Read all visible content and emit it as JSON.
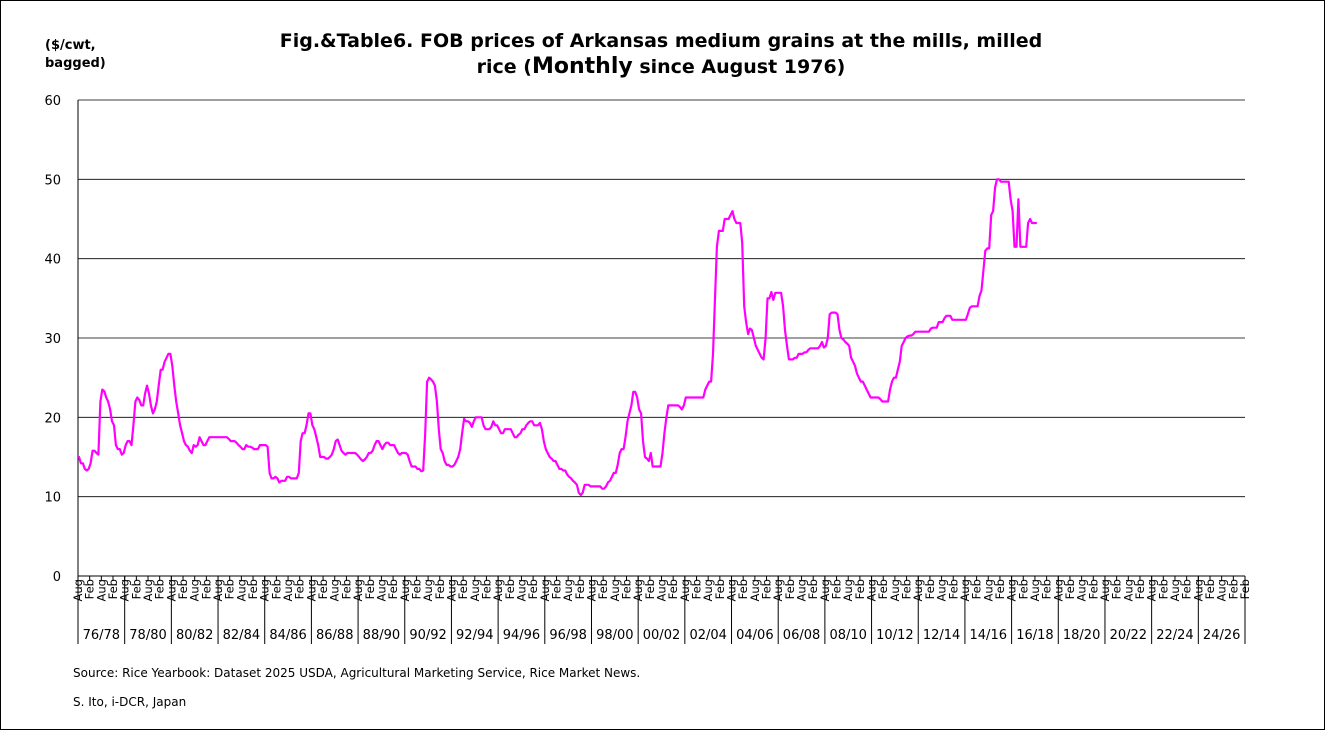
{
  "header": {
    "title_line1": "Fig.&Table6. FOB prices of Arkansas medium grains at the mills, milled",
    "title_line2_a": "rice (",
    "title_line2_b": "Monthly",
    "title_line2_c": " since August 1976)",
    "unit_line1": "($/cwt,",
    "unit_line2": "bagged)"
  },
  "footer": {
    "source": "Source:  Rice Yearbook: Dataset 2025 USDA, Agricultural Marketing Service, Rice Market News.",
    "author": "S. Ito, i-DCR, Japan"
  },
  "chart_data": {
    "type": "line",
    "title": "Fig.&Table6. FOB prices of Arkansas medium grains at the mills, milled rice (Monthly since August 1976)",
    "ylabel": "($/cwt, bagged)",
    "ylim": [
      0,
      60
    ],
    "yticks": [
      0,
      10,
      20,
      30,
      40,
      50,
      60
    ],
    "grid": true,
    "line_color": "#ff00ff",
    "x_tick_labels": [
      "Aug",
      "Feb"
    ],
    "periods": [
      "76/78",
      "78/80",
      "80/82",
      "82/84",
      "84/86",
      "86/88",
      "88/90",
      "90/92",
      "92/94",
      "94/96",
      "96/98",
      "98/00",
      "00/02",
      "02/04",
      "04/06",
      "06/08",
      "08/10",
      "10/12",
      "12/14",
      "14/16",
      "16/18",
      "18/20",
      "20/22",
      "22/24",
      "24/26"
    ],
    "series": [
      {
        "values_by_month_from_1976_08": [
          15.0,
          14.2,
          14.2,
          13.5,
          13.3,
          13.5,
          14.2,
          15.8,
          15.8,
          15.5,
          15.3,
          22.0,
          23.5,
          23.3,
          22.5,
          22.0,
          21.0,
          19.5,
          19.0,
          16.5,
          16.0,
          16.0,
          15.3,
          15.5,
          16.5,
          17.0,
          17.0,
          16.5,
          19.0,
          22.0,
          22.5,
          22.2,
          21.5,
          21.5,
          23.0,
          24.0,
          23.0,
          21.5,
          20.5,
          21.0,
          22.0,
          24.0,
          26.0,
          26.0,
          27.0,
          27.5,
          28.0,
          28.0,
          26.5,
          24.0,
          22.0,
          20.5,
          19.0,
          18.0,
          17.0,
          16.5,
          16.3,
          15.8,
          15.5,
          16.5,
          16.3,
          16.5,
          17.5,
          17.0,
          16.5,
          16.5,
          17.0,
          17.5,
          17.5,
          17.5,
          17.5,
          17.5,
          17.5,
          17.5,
          17.5,
          17.5,
          17.5,
          17.3,
          17.0,
          17.0,
          17.0,
          16.8,
          16.5,
          16.3,
          16.0,
          16.0,
          16.5,
          16.3,
          16.3,
          16.2,
          16.0,
          16.0,
          16.0,
          16.5,
          16.5,
          16.5,
          16.5,
          16.3,
          13.0,
          12.3,
          12.3,
          12.5,
          12.3,
          11.8,
          12.0,
          12.0,
          12.0,
          12.5,
          12.5,
          12.3,
          12.3,
          12.3,
          12.3,
          13.0,
          17.0,
          18.0,
          18.0,
          19.0,
          20.5,
          20.5,
          19.0,
          18.5,
          17.5,
          16.5,
          15.0,
          15.0,
          15.0,
          14.8,
          14.8,
          15.0,
          15.3,
          16.0,
          17.0,
          17.2,
          16.5,
          15.8,
          15.5,
          15.3,
          15.5,
          15.5,
          15.5,
          15.5,
          15.5,
          15.3,
          15.0,
          14.7,
          14.5,
          14.7,
          15.0,
          15.5,
          15.5,
          15.8,
          16.5,
          17.0,
          17.0,
          16.5,
          16.0,
          16.5,
          16.8,
          16.8,
          16.5,
          16.5,
          16.5,
          16.0,
          15.5,
          15.3,
          15.5,
          15.5,
          15.5,
          15.3,
          14.5,
          13.8,
          13.8,
          13.8,
          13.5,
          13.5,
          13.2,
          13.3,
          18.0,
          24.5,
          25.0,
          24.8,
          24.5,
          24.0,
          22.0,
          18.5,
          16.0,
          15.5,
          14.5,
          14.0,
          14.0,
          13.8,
          13.8,
          14.0,
          14.5,
          15.0,
          16.0,
          18.0,
          19.8,
          19.5,
          19.5,
          19.3,
          18.8,
          19.5,
          20.0,
          20.0,
          20.0,
          20.0,
          19.0,
          18.5,
          18.5,
          18.5,
          18.8,
          19.5,
          19.0,
          19.0,
          18.5,
          18.0,
          18.0,
          18.5,
          18.5,
          18.5,
          18.5,
          18.0,
          17.5,
          17.5,
          17.8,
          18.0,
          18.5,
          18.5,
          19.0,
          19.3,
          19.5,
          19.5,
          19.0,
          19.0,
          19.0,
          19.3,
          18.5,
          17.0,
          16.0,
          15.5,
          15.0,
          14.8,
          14.5,
          14.5,
          14.0,
          13.5,
          13.5,
          13.3,
          13.3,
          12.8,
          12.5,
          12.3,
          12.0,
          11.8,
          11.5,
          10.5,
          10.2,
          10.5,
          11.5,
          11.5,
          11.5,
          11.3,
          11.3,
          11.3,
          11.3,
          11.3,
          11.3,
          11.0,
          11.0,
          11.3,
          11.8,
          12.0,
          12.5,
          13.0,
          13.0,
          14.0,
          15.5,
          16.0,
          16.0,
          17.5,
          19.5,
          20.5,
          21.5,
          23.2,
          23.2,
          22.5,
          21.0,
          20.5,
          17.0,
          15.0,
          14.8,
          14.5,
          15.5,
          13.8,
          13.8,
          13.8,
          13.8,
          13.8,
          15.5,
          18.0,
          20.0,
          21.5,
          21.5,
          21.5,
          21.5,
          21.5,
          21.5,
          21.3,
          21.0,
          21.5,
          22.5,
          22.5,
          22.5,
          22.5,
          22.5,
          22.5,
          22.5,
          22.5,
          22.5,
          22.5,
          23.5,
          24.0,
          24.5,
          24.5,
          28.0,
          35.0,
          41.5,
          43.5,
          43.5,
          43.5,
          45.0,
          45.0,
          45.0,
          45.5,
          46.0,
          45.0,
          44.5,
          44.5,
          44.5,
          42.0,
          34.0,
          32.0,
          30.5,
          31.2,
          31.0,
          30.0,
          29.0,
          28.5,
          28.0,
          27.5,
          27.3,
          30.0,
          35.0,
          35.0,
          35.8,
          34.8,
          35.7,
          35.7,
          35.7,
          35.7,
          34.0,
          31.0,
          29.0,
          27.3,
          27.3,
          27.3,
          27.5,
          27.5,
          28.0,
          28.0,
          28.0,
          28.2,
          28.2,
          28.5,
          28.7,
          28.7,
          28.7,
          28.7,
          28.7,
          29.0,
          29.5,
          28.8,
          29.0,
          30.0,
          33.0,
          33.2,
          33.2,
          33.2,
          33.0,
          31.0,
          30.0,
          29.8,
          29.5,
          29.3,
          29.0,
          27.5,
          27.0,
          26.5,
          25.5,
          25.0,
          24.5,
          24.5,
          24.0,
          23.5,
          23.0,
          22.5,
          22.5,
          22.5,
          22.5,
          22.5,
          22.3,
          22.0,
          22.0,
          22.0,
          22.0,
          23.5,
          24.5,
          25.0,
          25.0,
          26.0,
          27.0,
          29.0,
          29.5,
          30.0,
          30.2,
          30.3,
          30.3,
          30.5,
          30.8,
          30.8,
          30.8,
          30.8,
          30.8,
          30.8,
          30.8,
          30.8,
          31.2,
          31.3,
          31.3,
          31.3,
          32.0,
          32.0,
          32.0,
          32.5,
          32.8,
          32.8,
          32.8,
          32.3,
          32.3,
          32.3,
          32.3,
          32.3,
          32.3,
          32.3,
          32.3,
          33.0,
          33.8,
          34.0,
          34.0,
          34.0,
          34.0,
          35.3,
          36.0,
          38.5,
          41.0,
          41.3,
          41.3,
          45.5,
          46.0,
          49.0,
          50.0,
          50.0,
          49.7,
          49.7,
          49.7,
          49.7,
          49.7,
          47.5,
          46.0,
          41.5,
          41.5,
          47.5,
          41.5,
          41.5,
          41.5,
          41.5,
          44.5,
          45.0,
          44.5,
          44.5,
          44.5
        ]
      }
    ]
  }
}
